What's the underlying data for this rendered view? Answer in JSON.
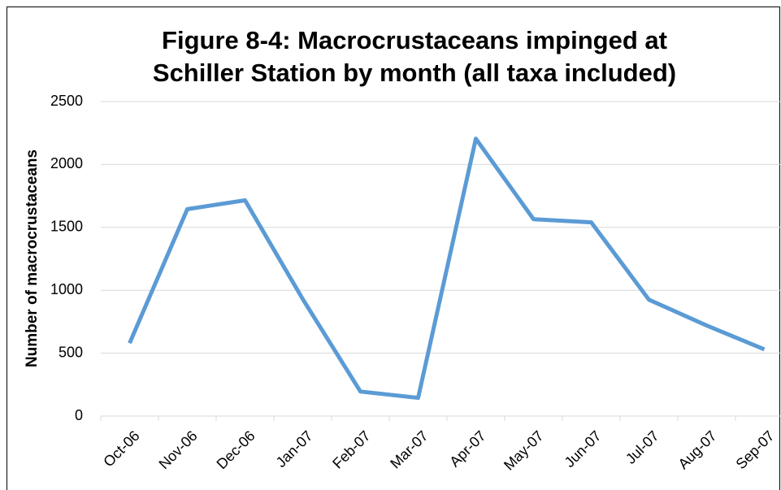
{
  "chart_data": {
    "type": "line",
    "title": "Figure 8-4: Macrocrustaceans impinged at Schiller Station by month (all taxa included)",
    "y_label": "Number of macrocrustaceans",
    "categories": [
      "Oct-06",
      "Nov-06",
      "Dec-06",
      "Jan-07",
      "Feb-07",
      "Mar-07",
      "Apr-07",
      "May-07",
      "Jun-07",
      "Jul-07",
      "Aug-07",
      "Sep-07"
    ],
    "series": [
      {
        "name": "Macrocrustaceans",
        "color": "#5b9bd5",
        "values": [
          580,
          1645,
          1715,
          930,
          195,
          145,
          2205,
          1565,
          1540,
          925,
          720,
          530
        ]
      }
    ],
    "ylim": [
      0,
      2500
    ],
    "yticks": [
      0,
      500,
      1000,
      1500,
      2000,
      2500
    ],
    "grid": true
  }
}
